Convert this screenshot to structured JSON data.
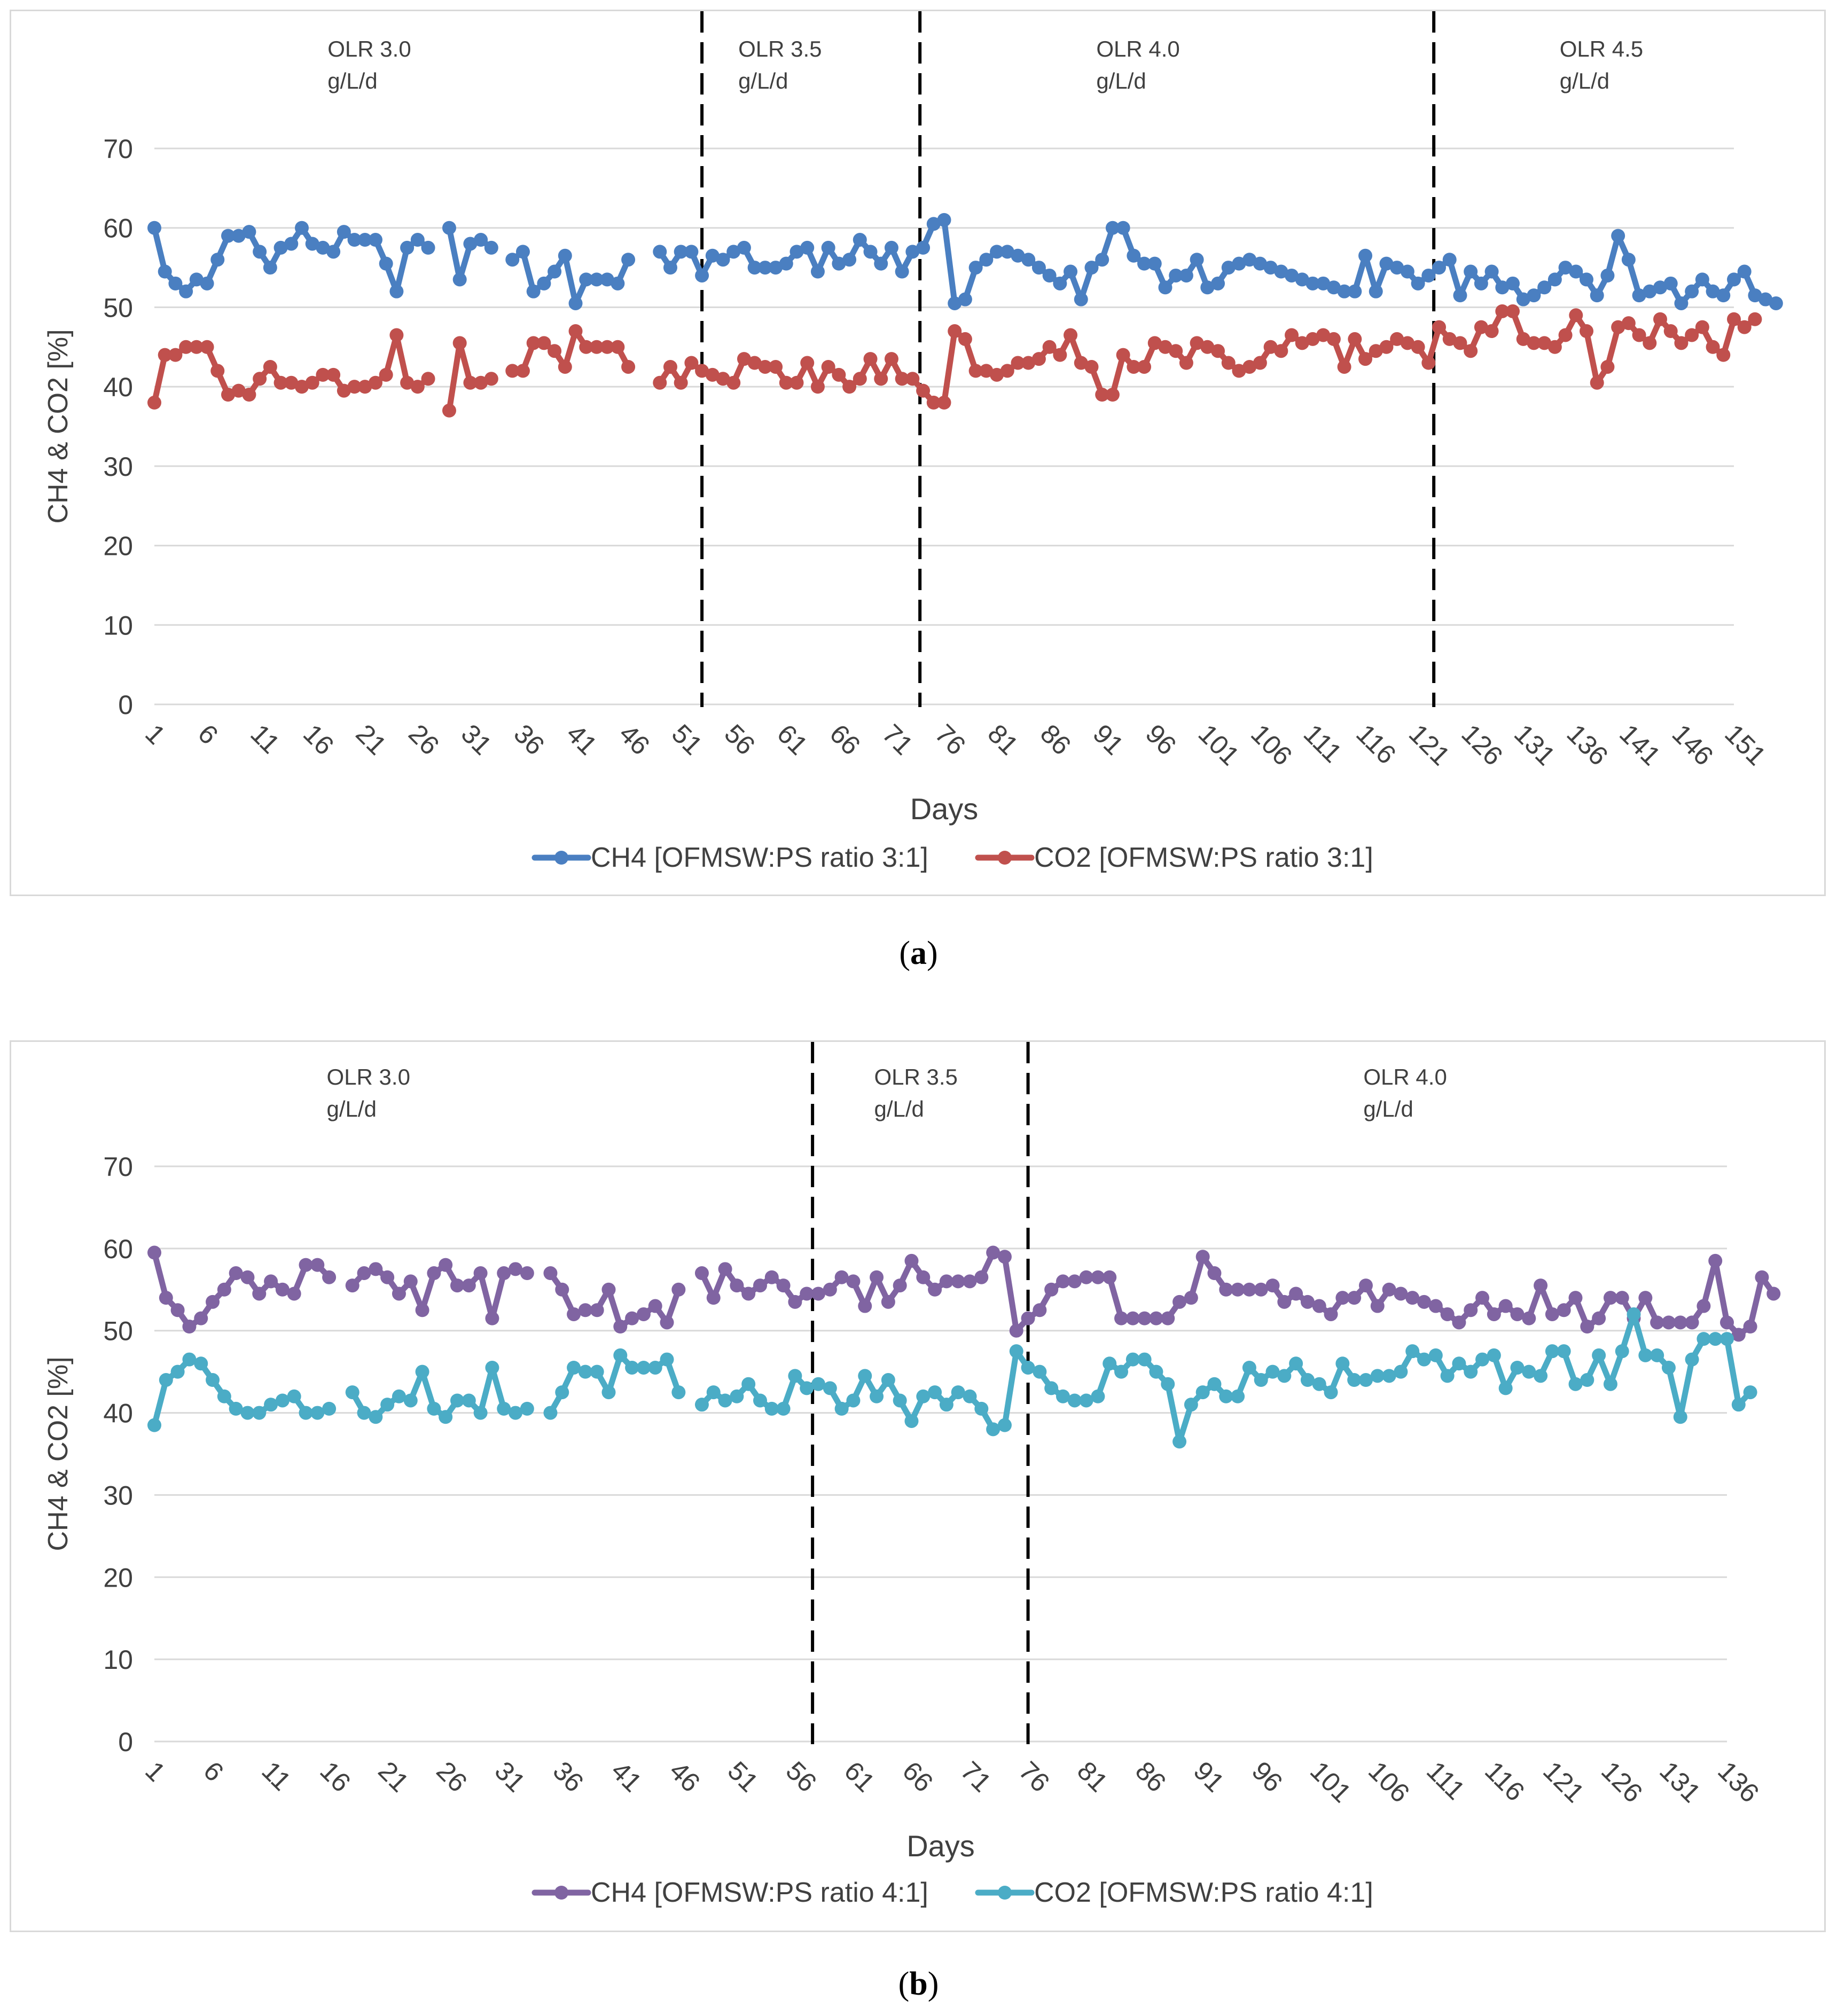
{
  "chart_data": [
    {
      "type": "line",
      "id": "a",
      "caption": "a",
      "xlabel": "Days",
      "ylabel": "CH4 & CO2 [%]",
      "ylim": [
        0,
        70
      ],
      "yticks": [
        0,
        10,
        20,
        30,
        40,
        50,
        60,
        70
      ],
      "xticks": [
        1,
        6,
        11,
        16,
        21,
        26,
        31,
        36,
        41,
        46,
        51,
        56,
        61,
        66,
        71,
        76,
        81,
        86,
        91,
        96,
        101,
        106,
        111,
        116,
        121,
        126,
        131,
        136,
        141,
        146,
        151
      ],
      "xlim": [
        1,
        151
      ],
      "grid": "horizontal",
      "legend_position": "bottom",
      "dividers": [
        53,
        73.7,
        122.5
      ],
      "regions": [
        {
          "line1": "OLR 3.0",
          "line2": "g/L/d",
          "x": 21
        },
        {
          "line1": "OLR 3.5",
          "line2": "g/L/d",
          "x": 60
        },
        {
          "line1": "OLR 4.0",
          "line2": "g/L/d",
          "x": 94
        },
        {
          "line1": "OLR 4.5",
          "line2": "g/L/d",
          "x": 138
        }
      ],
      "series": [
        {
          "name": "CH4 [OFMSW:PS ratio 3:1]",
          "color": "#4a7fc1",
          "segments": [
            {
              "start": 1,
              "values": [
                60,
                54.5,
                53,
                52,
                53.5,
                53,
                56,
                59,
                59,
                59.5,
                57,
                55,
                57.5,
                58,
                60,
                58,
                57.5,
                57,
                59.5,
                58.5,
                58.5,
                58.5,
                55.5,
                52,
                57.5,
                58.5,
                57.5
              ]
            },
            {
              "start": 29,
              "values": [
                60,
                53.5,
                58,
                58.5,
                57.5
              ]
            },
            {
              "start": 35,
              "values": [
                56,
                57,
                52,
                53,
                54.5,
                56.5,
                50.5,
                53.5,
                53.5,
                53.5,
                53,
                56
              ]
            },
            {
              "start": 49,
              "values": [
                57,
                55,
                57,
                57,
                54,
                56.5,
                56,
                57,
                57.5,
                55,
                55,
                55,
                55.5,
                57,
                57.5,
                54.5,
                57.5,
                55.5,
                56,
                58.5,
                57,
                55.5,
                57.5,
                54.5,
                57,
                57.5,
                60.5,
                61,
                50.5,
                51,
                55,
                56,
                57,
                57,
                56.5,
                56,
                55,
                54,
                53,
                54.5,
                51,
                55,
                56,
                60,
                60,
                56.5,
                55.5,
                55.5,
                52.5,
                54,
                54,
                56,
                52.5,
                53,
                55,
                55.5,
                56,
                55.5,
                55,
                54.5,
                54,
                53.5,
                53,
                53,
                52.5,
                52,
                52,
                56.5,
                52,
                55.5,
                55,
                54.5,
                53,
                54,
                55,
                56,
                51.5,
                54.5,
                53,
                54.5,
                52.5,
                53,
                51,
                51.5,
                52.5,
                53.5,
                55,
                54.5,
                53.5,
                51.5,
                54,
                59,
                56,
                51.5,
                52,
                52.5,
                53,
                50.5,
                52,
                53.5,
                52,
                51.5,
                53.5,
                54.5,
                51.5,
                51,
                50.5
              ]
            }
          ]
        },
        {
          "name": "CO2 [OFMSW:PS ratio 3:1]",
          "color": "#c0504d",
          "segments": [
            {
              "start": 1,
              "values": [
                38,
                44,
                44,
                45,
                45,
                45,
                42,
                39,
                39.5,
                39,
                41,
                42.5,
                40.5,
                40.5,
                40,
                40.5,
                41.5,
                41.5,
                39.5,
                40,
                40,
                40.5,
                41.5,
                46.5,
                40.5,
                40,
                41
              ]
            },
            {
              "start": 29,
              "values": [
                37,
                45.5,
                40.5,
                40.5,
                41
              ]
            },
            {
              "start": 35,
              "values": [
                42,
                42,
                45.5,
                45.5,
                44.5,
                42.5,
                47,
                45,
                45,
                45,
                45,
                42.5
              ]
            },
            {
              "start": 49,
              "values": [
                40.5,
                42.5,
                40.5,
                43,
                42,
                41.5,
                41,
                40.5,
                43.5,
                43,
                42.5,
                42.5,
                40.5,
                40.5,
                43,
                40,
                42.5,
                41.5,
                40,
                41,
                43.5,
                41,
                43.5,
                41,
                41,
                39.5,
                38,
                38,
                47,
                46,
                42,
                42,
                41.5,
                42,
                43,
                43,
                43.5,
                45,
                44,
                46.5,
                43,
                42.5,
                39,
                39,
                44,
                42.5,
                42.5,
                45.5,
                45,
                44.5,
                43,
                45.5,
                45,
                44.5,
                43,
                42,
                42.5,
                43,
                45,
                44.5,
                46.5,
                45.5,
                46,
                46.5,
                46,
                42.5,
                46,
                43.5,
                44.5,
                45,
                46,
                45.5,
                45,
                43,
                47.5,
                46,
                45.5,
                44.5,
                47.5,
                47,
                49.5,
                49.5,
                46,
                45.5,
                45.5,
                45,
                46.5,
                49,
                47,
                40.5,
                42.5,
                47.5,
                48,
                46.5,
                45.5,
                48.5,
                47,
                45.5,
                46.5,
                47.5,
                45,
                44,
                48.5,
                47.5,
                48.5
              ]
            }
          ]
        }
      ]
    },
    {
      "type": "line",
      "id": "b",
      "caption": "b",
      "xlabel": "Days",
      "ylabel": "CH4 & CO2 [%]",
      "ylim": [
        0,
        70
      ],
      "yticks": [
        0,
        10,
        20,
        30,
        40,
        50,
        60,
        70
      ],
      "xticks": [
        1,
        6,
        11,
        16,
        21,
        26,
        31,
        36,
        41,
        46,
        51,
        56,
        61,
        66,
        71,
        76,
        81,
        86,
        91,
        96,
        101,
        106,
        111,
        116,
        121,
        126,
        131,
        136
      ],
      "xlim": [
        1,
        136
      ],
      "grid": "horizontal",
      "legend_position": "bottom",
      "dividers": [
        57.5,
        76
      ],
      "regions": [
        {
          "line1": "OLR 3.0",
          "line2": "g/L/d",
          "x": 19
        },
        {
          "line1": "OLR 3.5",
          "line2": "g/L/d",
          "x": 66
        },
        {
          "line1": "OLR 4.0",
          "line2": "g/L/d",
          "x": 108
        }
      ],
      "series": [
        {
          "name": "CH4 [OFMSW:PS ratio 4:1]",
          "color": "#8064a2",
          "segments": [
            {
              "start": 1,
              "values": [
                59.5,
                54,
                52.5,
                50.5,
                51.5,
                53.5,
                55,
                57,
                56.5,
                54.5,
                56,
                55,
                54.5,
                58,
                58,
                56.5
              ]
            },
            {
              "start": 18,
              "values": [
                55.5,
                57,
                57.5,
                56.5,
                54.5,
                56,
                52.5,
                57,
                58,
                55.5,
                55.5,
                57,
                51.5,
                57,
                57.5,
                57
              ]
            },
            {
              "start": 35,
              "values": [
                57,
                55,
                52,
                52.5,
                52.5,
                55,
                50.5,
                51.5,
                52,
                53,
                51,
                55
              ]
            },
            {
              "start": 48,
              "values": [
                57,
                54,
                57.5,
                55.5,
                54.5,
                55.5,
                56.5,
                55.5,
                53.5,
                54.5,
                54.5,
                55,
                56.5,
                56,
                53,
                56.5,
                53.5,
                55.5,
                58.5,
                56.5,
                55,
                56,
                56,
                56,
                56.5,
                59.5,
                59,
                50,
                51.5,
                52.5,
                55,
                56,
                56,
                56.5,
                56.5,
                56.5,
                51.5,
                51.5,
                51.5,
                51.5,
                51.5,
                53.5,
                54,
                59,
                57,
                55,
                55,
                55,
                55,
                55.5,
                53.5,
                54.5,
                53.5,
                53,
                52,
                54,
                54,
                55.5,
                53,
                55,
                54.5,
                54,
                53.5,
                53,
                52,
                51,
                52.5,
                54,
                52,
                53,
                52,
                51.5,
                55.5,
                52,
                52.5,
                54,
                50.5,
                51.5,
                54,
                54,
                51.5,
                54,
                51,
                51,
                51,
                51,
                53,
                58.5,
                51,
                49.5,
                50.5,
                56.5,
                54.5
              ]
            }
          ]
        },
        {
          "name": "CO2 [OFMSW:PS ratio 4:1]",
          "color": "#4bacc6",
          "segments": [
            {
              "start": 1,
              "values": [
                38.5,
                44,
                45,
                46.5,
                46,
                44,
                42,
                40.5,
                40,
                40,
                41,
                41.5,
                42,
                40,
                40,
                40.5
              ]
            },
            {
              "start": 18,
              "values": [
                42.5,
                40,
                39.5,
                41,
                42,
                41.5,
                45,
                40.5,
                39.5,
                41.5,
                41.5,
                40,
                45.5,
                40.5,
                40,
                40.5
              ]
            },
            {
              "start": 35,
              "values": [
                40,
                42.5,
                45.5,
                45,
                45,
                42.5,
                47,
                45.5,
                45.5,
                45.5,
                46.5,
                42.5
              ]
            },
            {
              "start": 48,
              "values": [
                41,
                42.5,
                41.5,
                42,
                43.5,
                41.5,
                40.5,
                40.5,
                44.5,
                43,
                43.5,
                43,
                40.5,
                41.5,
                44.5,
                42,
                44,
                41.5,
                39,
                42,
                42.5,
                41,
                42.5,
                42,
                40.5,
                38,
                38.5,
                47.5,
                45.5,
                45,
                43,
                42,
                41.5,
                41.5,
                42,
                46,
                45,
                46.5,
                46.5,
                45,
                43.5,
                36.5,
                41,
                42.5,
                43.5,
                42,
                42,
                45.5,
                44,
                45,
                44.5,
                46,
                44,
                43.5,
                42.5,
                46,
                44,
                44,
                44.5,
                44.5,
                45,
                47.5,
                46.5,
                47,
                44.5,
                46,
                45,
                46.5,
                47,
                43,
                45.5,
                45,
                44.5,
                47.5,
                47.5,
                43.5,
                44,
                47,
                43.5,
                47.5,
                52,
                47,
                47,
                45.5,
                39.5,
                46.5,
                49,
                49,
                49,
                41,
                42.5
              ]
            }
          ]
        }
      ]
    }
  ]
}
